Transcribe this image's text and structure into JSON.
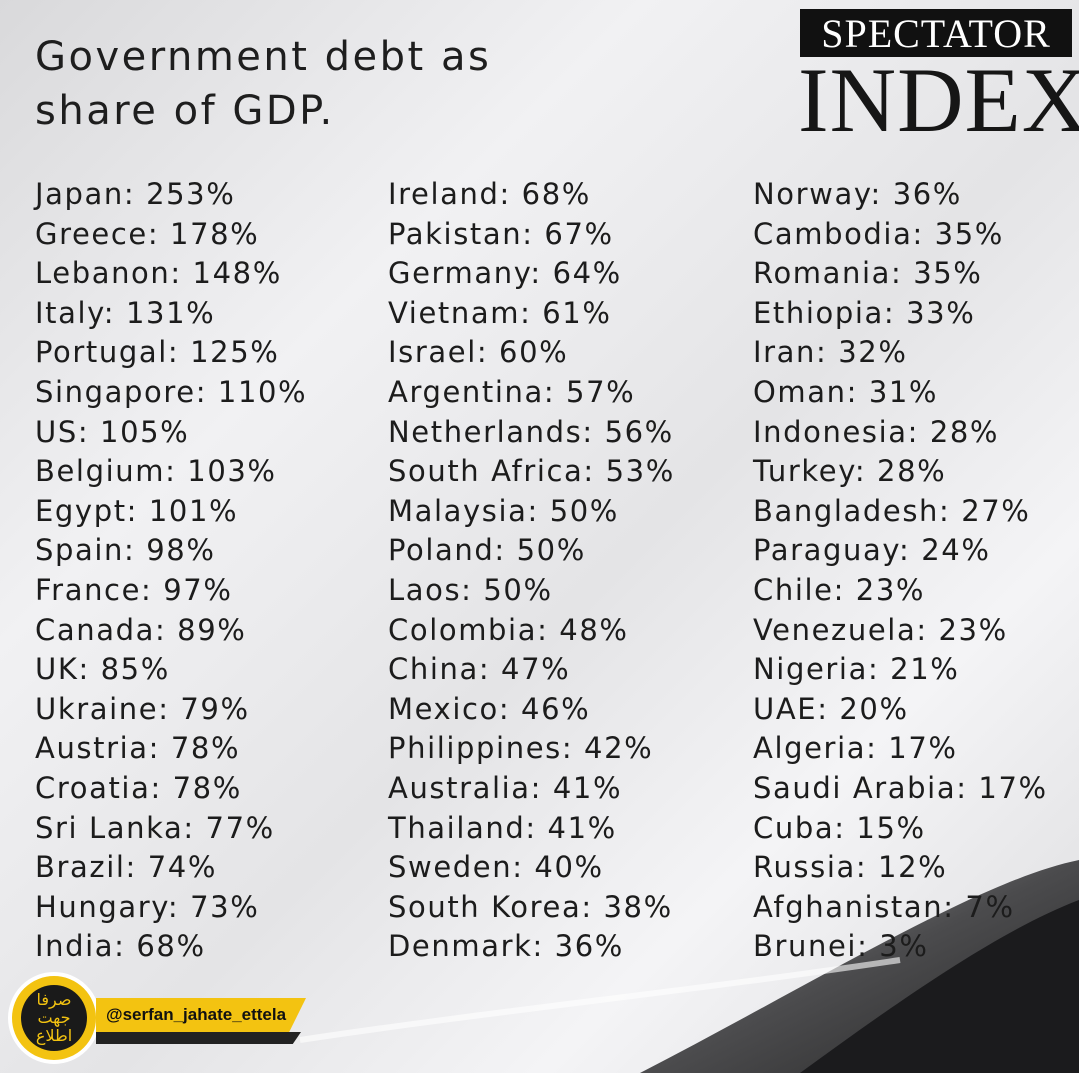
{
  "header": {
    "title_lines": [
      "Government debt as",
      "share of GDP."
    ],
    "logo_top": "SPECTATOR",
    "logo_bottom": "INDEX"
  },
  "columns": [
    [
      "Japan: 253%",
      "Greece: 178%",
      "Lebanon: 148%",
      "Italy: 131%",
      "Portugal: 125%",
      "Singapore: 110%",
      "US: 105%",
      "Belgium: 103%",
      "Egypt: 101%",
      "Spain: 98%",
      "France: 97%",
      "Canada: 89%",
      "UK: 85%",
      "Ukraine: 79%",
      "Austria: 78%",
      "Croatia: 78%",
      "Sri Lanka: 77%",
      "Brazil: 74%",
      "Hungary: 73%",
      "India: 68%"
    ],
    [
      "Ireland: 68%",
      "Pakistan: 67%",
      "Germany: 64%",
      "Vietnam: 61%",
      "Israel: 60%",
      "Argentina: 57%",
      "Netherlands: 56%",
      "South Africa: 53%",
      "Malaysia: 50%",
      "Poland: 50%",
      "Laos: 50%",
      "Colombia: 48%",
      "China: 47%",
      "Mexico: 46%",
      "Philippines: 42%",
      "Australia: 41%",
      "Thailand: 41%",
      "Sweden: 40%",
      "South Korea: 38%",
      "Denmark: 36%"
    ],
    [
      "Norway: 36%",
      "Cambodia: 35%",
      "Romania: 35%",
      "Ethiopia: 33%",
      "Iran: 32%",
      "Oman: 31%",
      "Indonesia: 28%",
      "Turkey: 28%",
      "Bangladesh: 27%",
      "Paraguay: 24%",
      "Chile: 23%",
      "Venezuela: 23%",
      "Nigeria: 21%",
      "UAE: 20%",
      "Algeria: 17%",
      "Saudi Arabia: 17%",
      "Cuba: 15%",
      "Russia: 12%",
      "Afghanistan: 7%",
      "Brunei: 3%"
    ]
  ],
  "watermark": {
    "logo_text": "صرفا جهت اطلاع",
    "handle": "@serfan_jahate_ettela"
  }
}
